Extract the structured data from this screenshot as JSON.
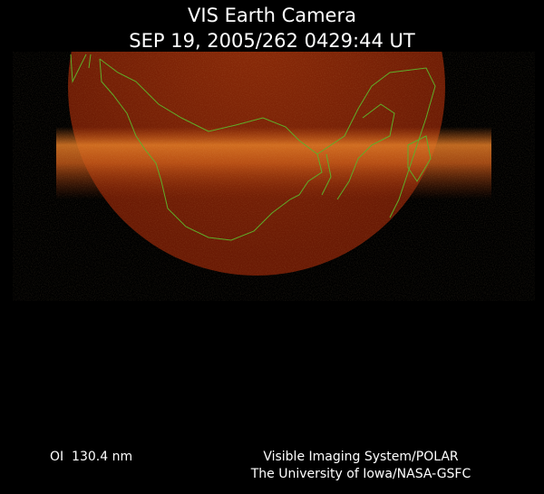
{
  "header": {
    "title": "VIS Earth Camera",
    "timestamp": "SEP 19, 2005/262 0429:44 UT"
  },
  "footer": {
    "wavelength": "OI  130.4 nm",
    "credits": [
      "Visible Imaging System/POLAR",
      "The University of Iowa/NASA-GSFC"
    ]
  }
}
